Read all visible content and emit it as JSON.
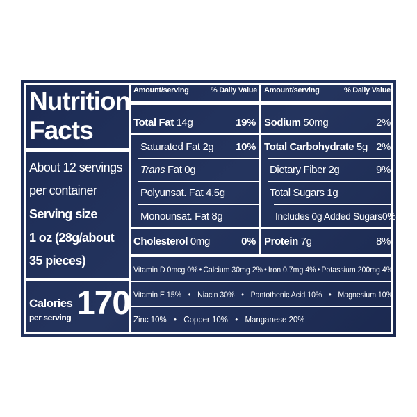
{
  "title_lines": [
    "Nutrition",
    "Facts"
  ],
  "servings_lines": [
    "About 12 servings",
    "per container"
  ],
  "serving_size": {
    "label": "Serving size",
    "lines": [
      "1 oz (28g/about",
      "35 pieces)"
    ]
  },
  "calories": {
    "label": "Calories",
    "sublabel": "per serving",
    "value": "170"
  },
  "left_table": {
    "header": {
      "amount": "Amount/serving",
      "dv": "% Daily Value"
    },
    "rows": [
      {
        "name": "Total Fat",
        "amount": "14g",
        "dv": "19%"
      },
      {
        "name": "Saturated Fat",
        "amount": "2g",
        "dv": "10%"
      },
      {
        "italic": "Trans",
        "name": "Fat",
        "amount": "0g"
      },
      {
        "name": "Polyunsat. Fat",
        "amount": "4.5g"
      },
      {
        "name": "Monounsat. Fat",
        "amount": "8g"
      },
      {
        "name": "Cholesterol",
        "amount": "0mg",
        "dv": "0%"
      }
    ]
  },
  "right_table": {
    "header": {
      "amount": "Amount/serving",
      "dv": "% Daily Value"
    },
    "rows": [
      {
        "name": "Sodium",
        "amount": "50mg",
        "dv": "2%"
      },
      {
        "name": "Total Carbohydrate",
        "amount": "5g",
        "dv": "2%"
      },
      {
        "name": "Dietary Fiber",
        "amount": "2g",
        "dv": "9%"
      },
      {
        "name": "Total Sugars",
        "amount": "1g"
      },
      {
        "name": "Includes 0g Added Sugars",
        "dv": "0%"
      },
      {
        "name": "Protein",
        "amount": "7g",
        "dv": "8%"
      }
    ]
  },
  "micronutrients": [
    [
      "Vitamin D 0mcg 0%",
      "Calcium 30mg 2%",
      "Iron 0.7mg 4%",
      "Potassium 200mg 4%"
    ],
    [
      "Vitamin E 15%",
      "Niacin 30%",
      "Pantothenic Acid 10%",
      "Magnesium 10%"
    ],
    [
      "Zinc 10%",
      "Copper 10%",
      "Manganese 20%"
    ]
  ]
}
